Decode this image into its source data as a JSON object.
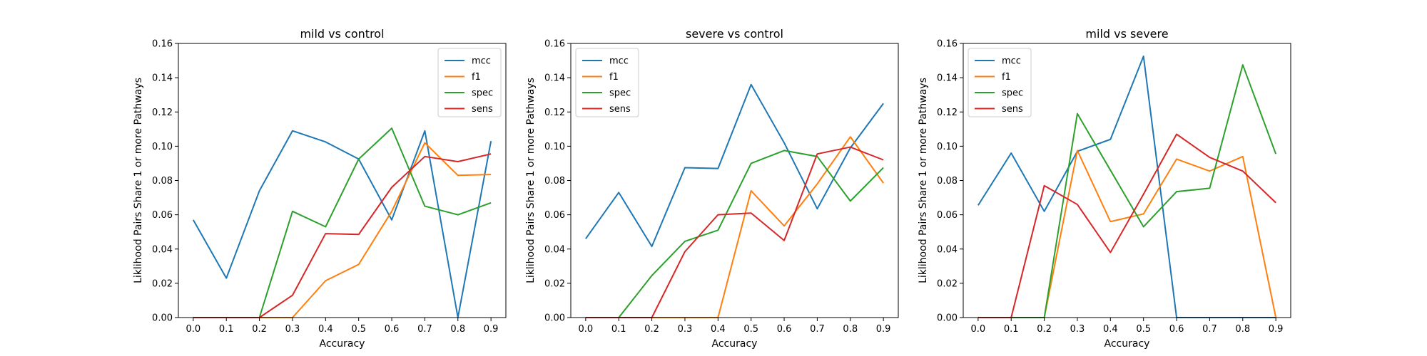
{
  "chart_data": [
    {
      "type": "line",
      "title": "mild vs control",
      "xlabel": "Accuracy",
      "ylabel": "Liklihood Pairs Share 1 or more Pathways",
      "x": [
        0.0,
        0.1,
        0.2,
        0.3,
        0.4,
        0.5,
        0.6,
        0.7,
        0.8,
        0.9
      ],
      "xticks": [
        "0.0",
        "0.1",
        "0.2",
        "0.3",
        "0.4",
        "0.5",
        "0.6",
        "0.7",
        "0.8",
        "0.9"
      ],
      "xlim": [
        -0.045,
        0.945
      ],
      "ylim": [
        0,
        0.16
      ],
      "yticks": [
        "0.00",
        "0.02",
        "0.04",
        "0.06",
        "0.08",
        "0.10",
        "0.12",
        "0.14",
        "0.16"
      ],
      "legend": "top-right",
      "grid": false,
      "series": [
        {
          "name": "mcc",
          "color": "#1f77b4",
          "values": [
            0.057,
            0.023,
            0.074,
            0.109,
            0.1025,
            0.0925,
            0.057,
            0.109,
            0.0,
            0.103
          ]
        },
        {
          "name": "f1",
          "color": "#ff7f0e",
          "values": [
            0.0,
            0.0,
            0.0,
            0.0,
            0.0215,
            0.031,
            0.062,
            0.102,
            0.083,
            0.0835
          ]
        },
        {
          "name": "spec",
          "color": "#2ca02c",
          "values": [
            0.0,
            0.0,
            0.0,
            0.062,
            0.053,
            0.0925,
            0.1105,
            0.065,
            0.06,
            0.067
          ]
        },
        {
          "name": "sens",
          "color": "#d62728",
          "values": [
            0.0,
            0.0,
            0.0,
            0.013,
            0.049,
            0.0485,
            0.076,
            0.094,
            0.091,
            0.0955
          ]
        }
      ]
    },
    {
      "type": "line",
      "title": "severe vs control",
      "xlabel": "Accuracy",
      "ylabel": "Liklihood Pairs Share 1 or more Pathways",
      "x": [
        0.0,
        0.1,
        0.2,
        0.3,
        0.4,
        0.5,
        0.6,
        0.7,
        0.8,
        0.9
      ],
      "xticks": [
        "0.0",
        "0.1",
        "0.2",
        "0.3",
        "0.4",
        "0.5",
        "0.6",
        "0.7",
        "0.8",
        "0.9"
      ],
      "xlim": [
        -0.045,
        0.945
      ],
      "ylim": [
        0,
        0.16
      ],
      "yticks": [
        "0.00",
        "0.02",
        "0.04",
        "0.06",
        "0.08",
        "0.10",
        "0.12",
        "0.14",
        "0.16"
      ],
      "legend": "top-left",
      "grid": false,
      "series": [
        {
          "name": "mcc",
          "color": "#1f77b4",
          "values": [
            0.046,
            0.073,
            0.0415,
            0.0875,
            0.087,
            0.136,
            0.102,
            0.0635,
            0.099,
            0.125
          ]
        },
        {
          "name": "f1",
          "color": "#ff7f0e",
          "values": [
            0.0,
            0.0,
            0.0,
            0.0,
            0.0,
            0.074,
            0.0535,
            0.078,
            0.1055,
            0.0785
          ]
        },
        {
          "name": "spec",
          "color": "#2ca02c",
          "values": [
            0.0,
            0.0,
            0.0245,
            0.0445,
            0.051,
            0.09,
            0.0975,
            0.094,
            0.068,
            0.0875
          ]
        },
        {
          "name": "sens",
          "color": "#d62728",
          "values": [
            0.0,
            0.0,
            0.0,
            0.0385,
            0.06,
            0.061,
            0.045,
            0.0955,
            0.0995,
            0.092
          ]
        }
      ]
    },
    {
      "type": "line",
      "title": "mild vs severe",
      "xlabel": "Accuracy",
      "ylabel": "Liklihood Pairs Share 1 or more Pathways",
      "x": [
        0.0,
        0.1,
        0.2,
        0.3,
        0.4,
        0.5,
        0.6,
        0.7,
        0.8,
        0.9
      ],
      "xticks": [
        "0.0",
        "0.1",
        "0.2",
        "0.3",
        "0.4",
        "0.5",
        "0.6",
        "0.7",
        "0.8",
        "0.9"
      ],
      "xlim": [
        -0.045,
        0.945
      ],
      "ylim": [
        0,
        0.16
      ],
      "yticks": [
        "0.00",
        "0.02",
        "0.04",
        "0.06",
        "0.08",
        "0.10",
        "0.12",
        "0.14",
        "0.16"
      ],
      "legend": "top-left",
      "grid": false,
      "series": [
        {
          "name": "mcc",
          "color": "#1f77b4",
          "values": [
            0.0655,
            0.096,
            0.062,
            0.097,
            0.104,
            0.1525,
            0.0,
            0.0,
            0.0,
            0.0
          ]
        },
        {
          "name": "f1",
          "color": "#ff7f0e",
          "values": [
            0.0,
            0.0,
            0.0,
            0.0975,
            0.056,
            0.0605,
            0.0925,
            0.0855,
            0.094,
            0.0
          ]
        },
        {
          "name": "spec",
          "color": "#2ca02c",
          "values": [
            0.0,
            0.0,
            0.0,
            0.119,
            0.086,
            0.053,
            0.0735,
            0.0755,
            0.1475,
            0.0955
          ]
        },
        {
          "name": "sens",
          "color": "#d62728",
          "values": [
            0.0,
            0.0,
            0.077,
            0.066,
            0.038,
            0.072,
            0.107,
            0.0935,
            0.0855,
            0.067
          ]
        }
      ]
    }
  ]
}
